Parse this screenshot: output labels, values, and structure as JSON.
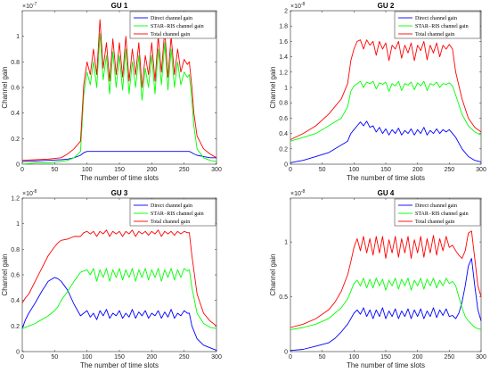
{
  "figure": {
    "background": "#ffffff"
  },
  "chart_data": [
    {
      "type": "line",
      "title": "GU 1",
      "xlabel": "The number of time slots",
      "ylabel": "Channel gain",
      "exponent_prefix": "×10",
      "exponent": "-7",
      "xlim": [
        0,
        300
      ],
      "ylim": [
        0,
        1.2
      ],
      "xticks": [
        0,
        50,
        100,
        150,
        200,
        250,
        300
      ],
      "yticks": [
        0,
        0.2,
        0.4,
        0.6,
        0.8,
        1
      ],
      "ytick_labels": [
        "0",
        "0.2",
        "0.4",
        "0.6",
        "0.8",
        "1"
      ],
      "legend_position": "top-right",
      "x": [
        0,
        20,
        40,
        60,
        70,
        80,
        90,
        95,
        100,
        105,
        110,
        115,
        120,
        125,
        130,
        135,
        140,
        145,
        150,
        155,
        160,
        165,
        170,
        175,
        180,
        185,
        190,
        195,
        200,
        205,
        210,
        215,
        220,
        225,
        230,
        235,
        240,
        245,
        250,
        255,
        258,
        262,
        265,
        270,
        280,
        290,
        300
      ],
      "series": [
        {
          "name": "Direct channel gain",
          "color": "#0000ff",
          "values": [
            0.02,
            0.025,
            0.03,
            0.035,
            0.04,
            0.05,
            0.07,
            0.09,
            0.1,
            0.1,
            0.1,
            0.1,
            0.1,
            0.1,
            0.1,
            0.1,
            0.1,
            0.1,
            0.1,
            0.1,
            0.1,
            0.1,
            0.1,
            0.1,
            0.1,
            0.1,
            0.1,
            0.1,
            0.1,
            0.1,
            0.1,
            0.1,
            0.1,
            0.1,
            0.1,
            0.1,
            0.1,
            0.1,
            0.1,
            0.1,
            0.1,
            0.09,
            0.08,
            0.07,
            0.06,
            0.05,
            0.05
          ]
        },
        {
          "name": "STAR−RIS channel gain",
          "color": "#00ff00",
          "values": [
            0.0,
            0.01,
            0.01,
            0.02,
            0.03,
            0.05,
            0.1,
            0.55,
            0.72,
            0.62,
            0.8,
            0.6,
            1.02,
            0.66,
            0.85,
            0.55,
            0.88,
            0.6,
            0.85,
            0.58,
            0.9,
            0.55,
            0.8,
            0.6,
            0.85,
            0.5,
            0.75,
            0.6,
            0.85,
            0.55,
            0.9,
            0.62,
            0.95,
            0.58,
            0.9,
            0.6,
            0.8,
            0.62,
            0.72,
            0.68,
            0.7,
            0.5,
            0.3,
            0.12,
            0.05,
            0.03,
            0.02
          ]
        },
        {
          "name": "Total channel gain",
          "color": "#ff0000",
          "values": [
            0.03,
            0.035,
            0.04,
            0.05,
            0.08,
            0.12,
            0.18,
            0.62,
            0.8,
            0.7,
            0.9,
            0.7,
            1.13,
            0.75,
            0.95,
            0.65,
            0.98,
            0.7,
            0.95,
            0.68,
            1.0,
            0.65,
            0.9,
            0.7,
            0.95,
            0.6,
            0.85,
            0.7,
            0.95,
            0.65,
            1.0,
            0.72,
            1.05,
            0.68,
            1.0,
            0.7,
            0.9,
            0.72,
            0.82,
            0.78,
            0.8,
            0.6,
            0.4,
            0.22,
            0.12,
            0.08,
            0.05
          ]
        }
      ]
    },
    {
      "type": "line",
      "title": "GU 2",
      "xlabel": "The number of time slots",
      "ylabel": "Channel gain",
      "exponent_prefix": "×10",
      "exponent": "-8",
      "xlim": [
        0,
        300
      ],
      "ylim": [
        0,
        2
      ],
      "xticks": [
        0,
        50,
        100,
        150,
        200,
        250,
        300
      ],
      "yticks": [
        0,
        0.2,
        0.4,
        0.6,
        0.8,
        1,
        1.2,
        1.4,
        1.6,
        1.8,
        2
      ],
      "ytick_labels": [
        "0",
        "0.2",
        "0.4",
        "0.6",
        "0.8",
        "1",
        "1.2",
        "1.4",
        "1.6",
        "1.8",
        "2"
      ],
      "legend_position": "top-right",
      "x": [
        0,
        20,
        40,
        60,
        80,
        90,
        95,
        100,
        105,
        110,
        115,
        120,
        125,
        130,
        135,
        140,
        145,
        150,
        155,
        160,
        165,
        170,
        175,
        180,
        185,
        190,
        195,
        200,
        205,
        210,
        215,
        220,
        225,
        230,
        235,
        240,
        245,
        250,
        255,
        260,
        270,
        280,
        290,
        300
      ],
      "series": [
        {
          "name": "Direct channel gain",
          "color": "#0000ff",
          "values": [
            0.02,
            0.05,
            0.1,
            0.15,
            0.25,
            0.3,
            0.4,
            0.45,
            0.5,
            0.55,
            0.5,
            0.56,
            0.48,
            0.5,
            0.42,
            0.48,
            0.4,
            0.46,
            0.38,
            0.45,
            0.4,
            0.47,
            0.38,
            0.44,
            0.4,
            0.46,
            0.38,
            0.45,
            0.4,
            0.48,
            0.38,
            0.44,
            0.4,
            0.46,
            0.4,
            0.45,
            0.42,
            0.45,
            0.4,
            0.35,
            0.2,
            0.1,
            0.05,
            0.03
          ]
        },
        {
          "name": "STAR−RIS channel gain",
          "color": "#00ff00",
          "values": [
            0.3,
            0.35,
            0.4,
            0.5,
            0.6,
            0.75,
            0.95,
            1.02,
            1.05,
            1.08,
            1.0,
            1.07,
            1.05,
            1.08,
            0.98,
            1.06,
            1.04,
            1.07,
            0.95,
            1.05,
            1.02,
            1.08,
            0.96,
            1.05,
            1.03,
            1.07,
            0.97,
            1.06,
            1.02,
            1.08,
            0.96,
            1.05,
            1.03,
            1.07,
            1.0,
            1.05,
            1.04,
            1.06,
            1.02,
            0.9,
            0.65,
            0.5,
            0.42,
            0.38
          ]
        },
        {
          "name": "Total channel gain",
          "color": "#ff0000",
          "values": [
            0.32,
            0.4,
            0.5,
            0.65,
            0.85,
            1.05,
            1.35,
            1.5,
            1.6,
            1.62,
            1.5,
            1.62,
            1.55,
            1.6,
            1.42,
            1.6,
            1.5,
            1.58,
            1.35,
            1.55,
            1.5,
            1.6,
            1.38,
            1.55,
            1.45,
            1.58,
            1.35,
            1.55,
            1.48,
            1.6,
            1.36,
            1.55,
            1.45,
            1.58,
            1.4,
            1.55,
            1.5,
            1.56,
            1.5,
            1.2,
            0.85,
            0.6,
            0.48,
            0.42
          ]
        }
      ]
    },
    {
      "type": "line",
      "title": "GU 3",
      "xlabel": "The number of time slots",
      "ylabel": "Channel gain",
      "exponent_prefix": "×10",
      "exponent": "-8",
      "xlim": [
        0,
        300
      ],
      "ylim": [
        0,
        1.2
      ],
      "xticks": [
        0,
        50,
        100,
        150,
        200,
        250,
        300
      ],
      "yticks": [
        0,
        0.2,
        0.4,
        0.6,
        0.8,
        1,
        1.2
      ],
      "ytick_labels": [
        "0",
        "0.2",
        "0.4",
        "0.6",
        "0.8",
        "1",
        "1.2"
      ],
      "legend_position": "top-right",
      "x": [
        0,
        5,
        10,
        20,
        30,
        40,
        50,
        55,
        60,
        70,
        80,
        90,
        95,
        100,
        105,
        110,
        115,
        120,
        125,
        130,
        135,
        140,
        145,
        150,
        155,
        160,
        165,
        170,
        175,
        180,
        185,
        190,
        195,
        200,
        205,
        210,
        215,
        220,
        225,
        230,
        235,
        240,
        245,
        250,
        255,
        258,
        262,
        270,
        280,
        290,
        300
      ],
      "series": [
        {
          "name": "Direct channel gain",
          "color": "#0000ff",
          "values": [
            0.18,
            0.25,
            0.3,
            0.38,
            0.47,
            0.55,
            0.58,
            0.57,
            0.55,
            0.48,
            0.37,
            0.28,
            0.3,
            0.32,
            0.27,
            0.3,
            0.25,
            0.32,
            0.28,
            0.33,
            0.26,
            0.3,
            0.28,
            0.32,
            0.26,
            0.3,
            0.27,
            0.33,
            0.26,
            0.31,
            0.28,
            0.32,
            0.26,
            0.3,
            0.28,
            0.32,
            0.26,
            0.31,
            0.27,
            0.33,
            0.26,
            0.3,
            0.28,
            0.32,
            0.3,
            0.3,
            0.2,
            0.1,
            0.05,
            0.03,
            0.01
          ]
        },
        {
          "name": "STAR−RIS channel gain",
          "color": "#00ff00",
          "values": [
            0.18,
            0.19,
            0.2,
            0.22,
            0.25,
            0.28,
            0.32,
            0.35,
            0.4,
            0.47,
            0.55,
            0.62,
            0.63,
            0.64,
            0.6,
            0.65,
            0.55,
            0.64,
            0.58,
            0.65,
            0.55,
            0.64,
            0.58,
            0.65,
            0.56,
            0.64,
            0.58,
            0.65,
            0.55,
            0.64,
            0.58,
            0.65,
            0.56,
            0.64,
            0.58,
            0.65,
            0.55,
            0.64,
            0.58,
            0.65,
            0.56,
            0.64,
            0.58,
            0.65,
            0.63,
            0.64,
            0.5,
            0.3,
            0.22,
            0.19,
            0.18
          ]
        },
        {
          "name": "Total channel gain",
          "color": "#ff0000",
          "values": [
            0.38,
            0.42,
            0.45,
            0.55,
            0.65,
            0.75,
            0.82,
            0.85,
            0.87,
            0.88,
            0.9,
            0.9,
            0.93,
            0.94,
            0.92,
            0.94,
            0.9,
            0.94,
            0.92,
            0.95,
            0.9,
            0.94,
            0.92,
            0.94,
            0.9,
            0.94,
            0.92,
            0.95,
            0.9,
            0.94,
            0.92,
            0.94,
            0.91,
            0.94,
            0.92,
            0.95,
            0.9,
            0.94,
            0.92,
            0.94,
            0.91,
            0.94,
            0.92,
            0.94,
            0.93,
            0.93,
            0.75,
            0.45,
            0.3,
            0.24,
            0.2
          ]
        }
      ]
    },
    {
      "type": "line",
      "title": "GU 4",
      "xlabel": "The number of time slots",
      "ylabel": "Channel gain",
      "exponent_prefix": "×10",
      "exponent": "-8",
      "xlim": [
        0,
        300
      ],
      "ylim": [
        0,
        1.4
      ],
      "xticks": [
        0,
        50,
        100,
        150,
        200,
        250,
        300
      ],
      "yticks": [
        0,
        0.5,
        1
      ],
      "ytick_labels": [
        "0",
        "0.5",
        "1"
      ],
      "legend_position": "top-right",
      "x": [
        0,
        20,
        40,
        60,
        70,
        80,
        90,
        95,
        100,
        105,
        110,
        115,
        120,
        125,
        130,
        135,
        140,
        145,
        150,
        155,
        160,
        165,
        170,
        175,
        180,
        185,
        190,
        195,
        200,
        205,
        210,
        215,
        220,
        225,
        230,
        235,
        240,
        245,
        250,
        255,
        260,
        265,
        270,
        275,
        280,
        285,
        290,
        295,
        300
      ],
      "series": [
        {
          "name": "Direct channel gain",
          "color": "#0000ff",
          "values": [
            0.01,
            0.02,
            0.05,
            0.08,
            0.12,
            0.18,
            0.25,
            0.3,
            0.35,
            0.38,
            0.34,
            0.4,
            0.32,
            0.38,
            0.3,
            0.38,
            0.32,
            0.4,
            0.3,
            0.37,
            0.32,
            0.39,
            0.3,
            0.37,
            0.32,
            0.39,
            0.3,
            0.38,
            0.32,
            0.39,
            0.3,
            0.37,
            0.32,
            0.4,
            0.31,
            0.38,
            0.33,
            0.39,
            0.32,
            0.33,
            0.3,
            0.35,
            0.45,
            0.6,
            0.78,
            0.85,
            0.6,
            0.38,
            0.28
          ]
        },
        {
          "name": "STAR−RIS channel gain",
          "color": "#00ff00",
          "values": [
            0.2,
            0.22,
            0.25,
            0.3,
            0.35,
            0.4,
            0.48,
            0.55,
            0.62,
            0.65,
            0.6,
            0.67,
            0.58,
            0.66,
            0.58,
            0.67,
            0.6,
            0.66,
            0.56,
            0.65,
            0.6,
            0.67,
            0.57,
            0.66,
            0.6,
            0.67,
            0.56,
            0.65,
            0.6,
            0.67,
            0.57,
            0.66,
            0.6,
            0.67,
            0.58,
            0.65,
            0.6,
            0.67,
            0.62,
            0.64,
            0.6,
            0.5,
            0.4,
            0.32,
            0.28,
            0.25,
            0.22,
            0.21,
            0.2
          ]
        },
        {
          "name": "Total channel gain",
          "color": "#ff0000",
          "values": [
            0.22,
            0.25,
            0.3,
            0.38,
            0.45,
            0.55,
            0.7,
            0.82,
            0.95,
            1.03,
            0.92,
            1.05,
            0.9,
            1.03,
            0.88,
            1.05,
            0.9,
            1.05,
            0.85,
            1.02,
            0.9,
            1.05,
            0.86,
            1.03,
            0.9,
            1.05,
            0.85,
            1.02,
            0.9,
            1.05,
            0.86,
            1.03,
            0.9,
            1.06,
            0.88,
            1.03,
            0.92,
            1.05,
            0.95,
            0.97,
            0.92,
            0.88,
            0.85,
            0.92,
            1.08,
            1.1,
            0.85,
            0.6,
            0.5
          ]
        }
      ]
    }
  ]
}
